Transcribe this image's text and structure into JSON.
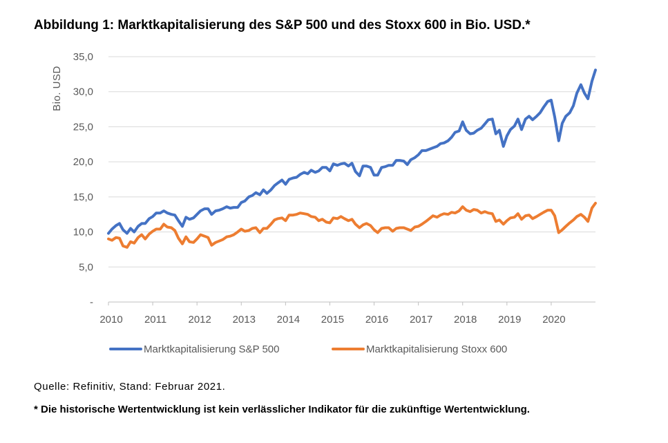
{
  "title": "Abbildung 1: Marktkapitalisierung des S&P 500 und des Stoxx 600 in Bio. USD.*",
  "source": "Quelle: Refinitiv, Stand: Februar 2021.",
  "disclaimer": "* Die historische Wertentwicklung ist kein verlässlicher Indikator für die zukünftige Wertentwicklung.",
  "chart_data": {
    "type": "line",
    "title": "Abbildung 1: Marktkapitalisierung des S&P 500 und des Stoxx 600 in Bio. USD.*",
    "xlabel": "",
    "ylabel": "Bio. USD",
    "xlim": [
      2010,
      2021
    ],
    "ylim": [
      0,
      35
    ],
    "grid": true,
    "legend_position": "bottom",
    "yticks": [
      {
        "value": 0,
        "label": "-"
      },
      {
        "value": 5,
        "label": "5,0"
      },
      {
        "value": 10,
        "label": "10,0"
      },
      {
        "value": 15,
        "label": "15,0"
      },
      {
        "value": 20,
        "label": "20,0"
      },
      {
        "value": 25,
        "label": "25,0"
      },
      {
        "value": 30,
        "label": "30,0"
      },
      {
        "value": 35,
        "label": "35,0"
      }
    ],
    "xticks": [
      {
        "value": 2010,
        "label": "2010"
      },
      {
        "value": 2011,
        "label": "2011"
      },
      {
        "value": 2012,
        "label": "2012"
      },
      {
        "value": 2013,
        "label": "2013"
      },
      {
        "value": 2014,
        "label": "2014"
      },
      {
        "value": 2015,
        "label": "2015"
      },
      {
        "value": 2016,
        "label": "2016"
      },
      {
        "value": 2017,
        "label": "2017"
      },
      {
        "value": 2018,
        "label": "2018"
      },
      {
        "value": 2019,
        "label": "2019"
      },
      {
        "value": 2020,
        "label": "2020"
      }
    ],
    "series": [
      {
        "name": "Marktkapitalisierung S&P 500",
        "color": "#4472C4",
        "points": [
          [
            2010.0,
            9.8
          ],
          [
            2010.08,
            10.4
          ],
          [
            2010.17,
            10.9
          ],
          [
            2010.25,
            11.2
          ],
          [
            2010.33,
            10.3
          ],
          [
            2010.42,
            9.8
          ],
          [
            2010.5,
            10.5
          ],
          [
            2010.58,
            10.0
          ],
          [
            2010.67,
            10.8
          ],
          [
            2010.75,
            11.2
          ],
          [
            2010.83,
            11.2
          ],
          [
            2010.92,
            11.9
          ],
          [
            2011.0,
            12.2
          ],
          [
            2011.08,
            12.7
          ],
          [
            2011.17,
            12.7
          ],
          [
            2011.25,
            13.0
          ],
          [
            2011.33,
            12.7
          ],
          [
            2011.42,
            12.5
          ],
          [
            2011.5,
            12.4
          ],
          [
            2011.58,
            11.6
          ],
          [
            2011.67,
            10.8
          ],
          [
            2011.75,
            12.1
          ],
          [
            2011.83,
            11.8
          ],
          [
            2011.92,
            12.0
          ],
          [
            2012.0,
            12.5
          ],
          [
            2012.08,
            13.0
          ],
          [
            2012.17,
            13.3
          ],
          [
            2012.25,
            13.3
          ],
          [
            2012.33,
            12.5
          ],
          [
            2012.42,
            13.0
          ],
          [
            2012.5,
            13.1
          ],
          [
            2012.58,
            13.3
          ],
          [
            2012.67,
            13.6
          ],
          [
            2012.75,
            13.4
          ],
          [
            2012.83,
            13.5
          ],
          [
            2012.92,
            13.5
          ],
          [
            2013.0,
            14.2
          ],
          [
            2013.08,
            14.4
          ],
          [
            2013.17,
            15.0
          ],
          [
            2013.25,
            15.2
          ],
          [
            2013.33,
            15.6
          ],
          [
            2013.42,
            15.3
          ],
          [
            2013.5,
            16.0
          ],
          [
            2013.58,
            15.5
          ],
          [
            2013.67,
            16.0
          ],
          [
            2013.75,
            16.6
          ],
          [
            2013.83,
            17.0
          ],
          [
            2013.92,
            17.4
          ],
          [
            2014.0,
            16.8
          ],
          [
            2014.08,
            17.5
          ],
          [
            2014.17,
            17.7
          ],
          [
            2014.25,
            17.8
          ],
          [
            2014.33,
            18.2
          ],
          [
            2014.42,
            18.5
          ],
          [
            2014.5,
            18.3
          ],
          [
            2014.58,
            18.8
          ],
          [
            2014.67,
            18.5
          ],
          [
            2014.75,
            18.7
          ],
          [
            2014.83,
            19.2
          ],
          [
            2014.92,
            19.2
          ],
          [
            2015.0,
            18.7
          ],
          [
            2015.08,
            19.7
          ],
          [
            2015.17,
            19.5
          ],
          [
            2015.25,
            19.7
          ],
          [
            2015.33,
            19.8
          ],
          [
            2015.42,
            19.4
          ],
          [
            2015.5,
            19.8
          ],
          [
            2015.58,
            18.6
          ],
          [
            2015.67,
            18.0
          ],
          [
            2015.75,
            19.4
          ],
          [
            2015.83,
            19.4
          ],
          [
            2015.92,
            19.2
          ],
          [
            2016.0,
            18.1
          ],
          [
            2016.08,
            18.1
          ],
          [
            2016.17,
            19.2
          ],
          [
            2016.25,
            19.3
          ],
          [
            2016.33,
            19.5
          ],
          [
            2016.42,
            19.5
          ],
          [
            2016.5,
            20.2
          ],
          [
            2016.58,
            20.2
          ],
          [
            2016.67,
            20.1
          ],
          [
            2016.75,
            19.6
          ],
          [
            2016.83,
            20.3
          ],
          [
            2016.92,
            20.6
          ],
          [
            2017.0,
            21.0
          ],
          [
            2017.08,
            21.6
          ],
          [
            2017.17,
            21.6
          ],
          [
            2017.25,
            21.8
          ],
          [
            2017.33,
            22.0
          ],
          [
            2017.42,
            22.2
          ],
          [
            2017.5,
            22.6
          ],
          [
            2017.58,
            22.7
          ],
          [
            2017.67,
            23.0
          ],
          [
            2017.75,
            23.5
          ],
          [
            2017.83,
            24.2
          ],
          [
            2017.92,
            24.4
          ],
          [
            2018.0,
            25.7
          ],
          [
            2018.08,
            24.5
          ],
          [
            2018.17,
            24.0
          ],
          [
            2018.25,
            24.1
          ],
          [
            2018.33,
            24.5
          ],
          [
            2018.42,
            24.8
          ],
          [
            2018.5,
            25.4
          ],
          [
            2018.58,
            26.0
          ],
          [
            2018.67,
            26.1
          ],
          [
            2018.75,
            24.0
          ],
          [
            2018.83,
            24.5
          ],
          [
            2018.92,
            22.2
          ],
          [
            2019.0,
            23.7
          ],
          [
            2019.08,
            24.6
          ],
          [
            2019.17,
            25.1
          ],
          [
            2019.25,
            26.1
          ],
          [
            2019.33,
            24.6
          ],
          [
            2019.42,
            26.1
          ],
          [
            2019.5,
            26.5
          ],
          [
            2019.58,
            26.0
          ],
          [
            2019.67,
            26.5
          ],
          [
            2019.75,
            27.0
          ],
          [
            2019.83,
            27.8
          ],
          [
            2019.92,
            28.6
          ],
          [
            2020.0,
            28.8
          ],
          [
            2020.08,
            26.4
          ],
          [
            2020.17,
            23.0
          ],
          [
            2020.25,
            25.5
          ],
          [
            2020.33,
            26.5
          ],
          [
            2020.42,
            27.0
          ],
          [
            2020.5,
            28.0
          ],
          [
            2020.58,
            29.8
          ],
          [
            2020.67,
            31.0
          ],
          [
            2020.75,
            29.8
          ],
          [
            2020.83,
            29.0
          ],
          [
            2020.92,
            31.5
          ],
          [
            2021.0,
            33.1
          ]
        ]
      },
      {
        "name": "Marktkapitalisierung Stoxx 600",
        "color": "#ED7D31",
        "points": [
          [
            2010.0,
            9.0
          ],
          [
            2010.08,
            8.8
          ],
          [
            2010.17,
            9.2
          ],
          [
            2010.25,
            9.1
          ],
          [
            2010.33,
            8.0
          ],
          [
            2010.42,
            7.8
          ],
          [
            2010.5,
            8.6
          ],
          [
            2010.58,
            8.4
          ],
          [
            2010.67,
            9.2
          ],
          [
            2010.75,
            9.6
          ],
          [
            2010.83,
            9.0
          ],
          [
            2010.92,
            9.7
          ],
          [
            2011.0,
            10.1
          ],
          [
            2011.08,
            10.4
          ],
          [
            2011.17,
            10.4
          ],
          [
            2011.25,
            11.1
          ],
          [
            2011.33,
            10.7
          ],
          [
            2011.42,
            10.6
          ],
          [
            2011.5,
            10.2
          ],
          [
            2011.58,
            9.1
          ],
          [
            2011.67,
            8.3
          ],
          [
            2011.75,
            9.3
          ],
          [
            2011.83,
            8.6
          ],
          [
            2011.92,
            8.5
          ],
          [
            2012.0,
            9.0
          ],
          [
            2012.08,
            9.6
          ],
          [
            2012.17,
            9.4
          ],
          [
            2012.25,
            9.2
          ],
          [
            2012.33,
            8.1
          ],
          [
            2012.42,
            8.5
          ],
          [
            2012.5,
            8.7
          ],
          [
            2012.58,
            8.9
          ],
          [
            2012.67,
            9.3
          ],
          [
            2012.75,
            9.4
          ],
          [
            2012.83,
            9.6
          ],
          [
            2012.92,
            10.0
          ],
          [
            2013.0,
            10.4
          ],
          [
            2013.08,
            10.1
          ],
          [
            2013.17,
            10.2
          ],
          [
            2013.25,
            10.5
          ],
          [
            2013.33,
            10.6
          ],
          [
            2013.42,
            9.9
          ],
          [
            2013.5,
            10.5
          ],
          [
            2013.58,
            10.5
          ],
          [
            2013.67,
            11.1
          ],
          [
            2013.75,
            11.7
          ],
          [
            2013.83,
            11.9
          ],
          [
            2013.92,
            12.0
          ],
          [
            2014.0,
            11.6
          ],
          [
            2014.08,
            12.4
          ],
          [
            2014.17,
            12.4
          ],
          [
            2014.25,
            12.5
          ],
          [
            2014.33,
            12.7
          ],
          [
            2014.42,
            12.6
          ],
          [
            2014.5,
            12.5
          ],
          [
            2014.58,
            12.2
          ],
          [
            2014.67,
            12.1
          ],
          [
            2014.75,
            11.6
          ],
          [
            2014.83,
            11.8
          ],
          [
            2014.92,
            11.4
          ],
          [
            2015.0,
            11.3
          ],
          [
            2015.08,
            12.0
          ],
          [
            2015.17,
            11.9
          ],
          [
            2015.25,
            12.2
          ],
          [
            2015.33,
            11.9
          ],
          [
            2015.42,
            11.6
          ],
          [
            2015.5,
            11.8
          ],
          [
            2015.58,
            11.1
          ],
          [
            2015.67,
            10.6
          ],
          [
            2015.75,
            11.0
          ],
          [
            2015.83,
            11.2
          ],
          [
            2015.92,
            10.9
          ],
          [
            2016.0,
            10.3
          ],
          [
            2016.08,
            9.9
          ],
          [
            2016.17,
            10.5
          ],
          [
            2016.25,
            10.6
          ],
          [
            2016.33,
            10.6
          ],
          [
            2016.42,
            10.1
          ],
          [
            2016.5,
            10.5
          ],
          [
            2016.58,
            10.6
          ],
          [
            2016.67,
            10.6
          ],
          [
            2016.75,
            10.4
          ],
          [
            2016.83,
            10.2
          ],
          [
            2016.92,
            10.7
          ],
          [
            2017.0,
            10.8
          ],
          [
            2017.08,
            11.1
          ],
          [
            2017.17,
            11.5
          ],
          [
            2017.25,
            11.9
          ],
          [
            2017.33,
            12.3
          ],
          [
            2017.42,
            12.1
          ],
          [
            2017.5,
            12.4
          ],
          [
            2017.58,
            12.6
          ],
          [
            2017.67,
            12.5
          ],
          [
            2017.75,
            12.8
          ],
          [
            2017.83,
            12.7
          ],
          [
            2017.92,
            13.0
          ],
          [
            2018.0,
            13.6
          ],
          [
            2018.08,
            13.1
          ],
          [
            2018.17,
            12.9
          ],
          [
            2018.25,
            13.2
          ],
          [
            2018.33,
            13.1
          ],
          [
            2018.42,
            12.7
          ],
          [
            2018.5,
            12.9
          ],
          [
            2018.58,
            12.7
          ],
          [
            2018.67,
            12.6
          ],
          [
            2018.75,
            11.5
          ],
          [
            2018.83,
            11.7
          ],
          [
            2018.92,
            11.1
          ],
          [
            2019.0,
            11.6
          ],
          [
            2019.08,
            12.0
          ],
          [
            2019.17,
            12.1
          ],
          [
            2019.25,
            12.6
          ],
          [
            2019.33,
            11.8
          ],
          [
            2019.42,
            12.3
          ],
          [
            2019.5,
            12.4
          ],
          [
            2019.58,
            11.9
          ],
          [
            2019.67,
            12.2
          ],
          [
            2019.75,
            12.5
          ],
          [
            2019.83,
            12.8
          ],
          [
            2019.92,
            13.1
          ],
          [
            2020.0,
            13.1
          ],
          [
            2020.08,
            12.3
          ],
          [
            2020.17,
            9.9
          ],
          [
            2020.25,
            10.3
          ],
          [
            2020.33,
            10.8
          ],
          [
            2020.42,
            11.3
          ],
          [
            2020.5,
            11.7
          ],
          [
            2020.58,
            12.2
          ],
          [
            2020.67,
            12.5
          ],
          [
            2020.75,
            12.1
          ],
          [
            2020.83,
            11.5
          ],
          [
            2020.92,
            13.4
          ],
          [
            2021.0,
            14.1
          ]
        ]
      }
    ]
  }
}
